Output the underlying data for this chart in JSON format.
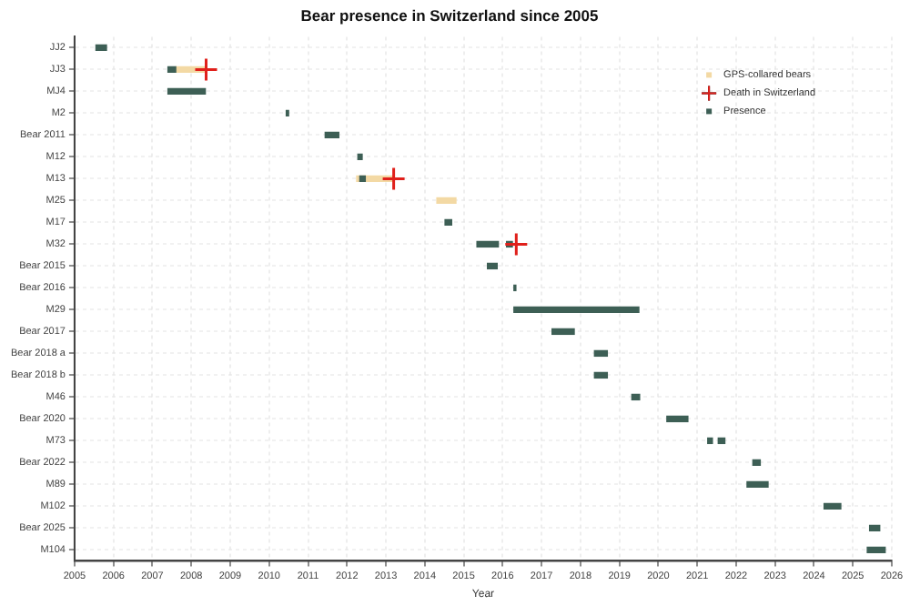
{
  "chart_data": {
    "type": "bar",
    "orientation": "horizontal",
    "title": "Bear presence in Switzerland since 2005",
    "xlabel": "Year",
    "categories": [
      "JJ2",
      "JJ3",
      "MJ4",
      "M2",
      "Bear 2011",
      "M12",
      "M13",
      "M25",
      "M17",
      "M32",
      "Bear 2015",
      "Bear 2016",
      "M29",
      "Bear 2017",
      "Bear 2018 a",
      "Bear 2018 b",
      "M46",
      "Bear 2020",
      "M73",
      "Bear 2022",
      "M89",
      "M102",
      "Bear 2025",
      "M104"
    ],
    "series": [
      {
        "name": "GPS-collared bears",
        "color": "#f3d9a4",
        "base": [
          null,
          2007.6,
          null,
          null,
          null,
          null,
          2012.25,
          2014.31,
          null,
          null,
          null,
          null,
          null,
          null,
          null,
          null,
          null,
          null,
          null,
          null,
          null,
          null,
          null,
          null
        ],
        "values": [
          null,
          0.76,
          null,
          null,
          null,
          null,
          0.95,
          0.49,
          null,
          null,
          null,
          null,
          null,
          null,
          null,
          null,
          null,
          null,
          null,
          null,
          null,
          null,
          null,
          null
        ]
      },
      {
        "name": "Death in Switzerland",
        "type": "scatter",
        "color": "#e0201b",
        "marker": "cross",
        "x": [
          "JJ3",
          "M13",
          "M32"
        ],
        "values": [
          2008.38,
          2013.2,
          2016.35
        ]
      },
      {
        "name": "Presence",
        "color": "#3d5f55",
        "base": [
          2005.55,
          2007.4,
          2007.4,
          2010.44,
          2011.44,
          2012.28,
          2012.33,
          null,
          2014.52,
          2015.34,
          2015.61,
          2016.29,
          2016.29,
          2017.27,
          2018.36,
          2018.36,
          2019.32,
          2020.22,
          2021.27,
          2022.43,
          2022.28,
          2024.26,
          2025.43,
          2025.37
        ],
        "values": [
          0.27,
          0.2,
          0.96,
          0.06,
          0.35,
          0.11,
          0.14,
          null,
          0.17,
          0.55,
          0.25,
          0.05,
          3.21,
          0.57,
          0.33,
          0.33,
          0.2,
          0.54,
          0.12,
          0.19,
          0.54,
          0.43,
          0.26,
          0.46
        ]
      },
      {
        "color": "#3d5f55",
        "base": [
          null,
          null,
          null,
          null,
          null,
          null,
          null,
          null,
          null,
          2016.1,
          null,
          null,
          null,
          null,
          null,
          null,
          null,
          null,
          2021.54,
          null,
          null,
          null,
          null,
          null
        ],
        "values": [
          null,
          null,
          null,
          null,
          null,
          null,
          null,
          null,
          null,
          0.15,
          null,
          null,
          null,
          null,
          null,
          null,
          null,
          null,
          0.17,
          null,
          null,
          null,
          null,
          null
        ]
      }
    ],
    "xlim": [
      2005,
      2026
    ],
    "xticks": [
      2005,
      2006,
      2007,
      2008,
      2009,
      2010,
      2011,
      2012,
      2013,
      2014,
      2015,
      2016,
      2017,
      2018,
      2019,
      2020,
      2021,
      2022,
      2023,
      2024,
      2025,
      2026
    ],
    "grid": true,
    "legend": "top right"
  }
}
